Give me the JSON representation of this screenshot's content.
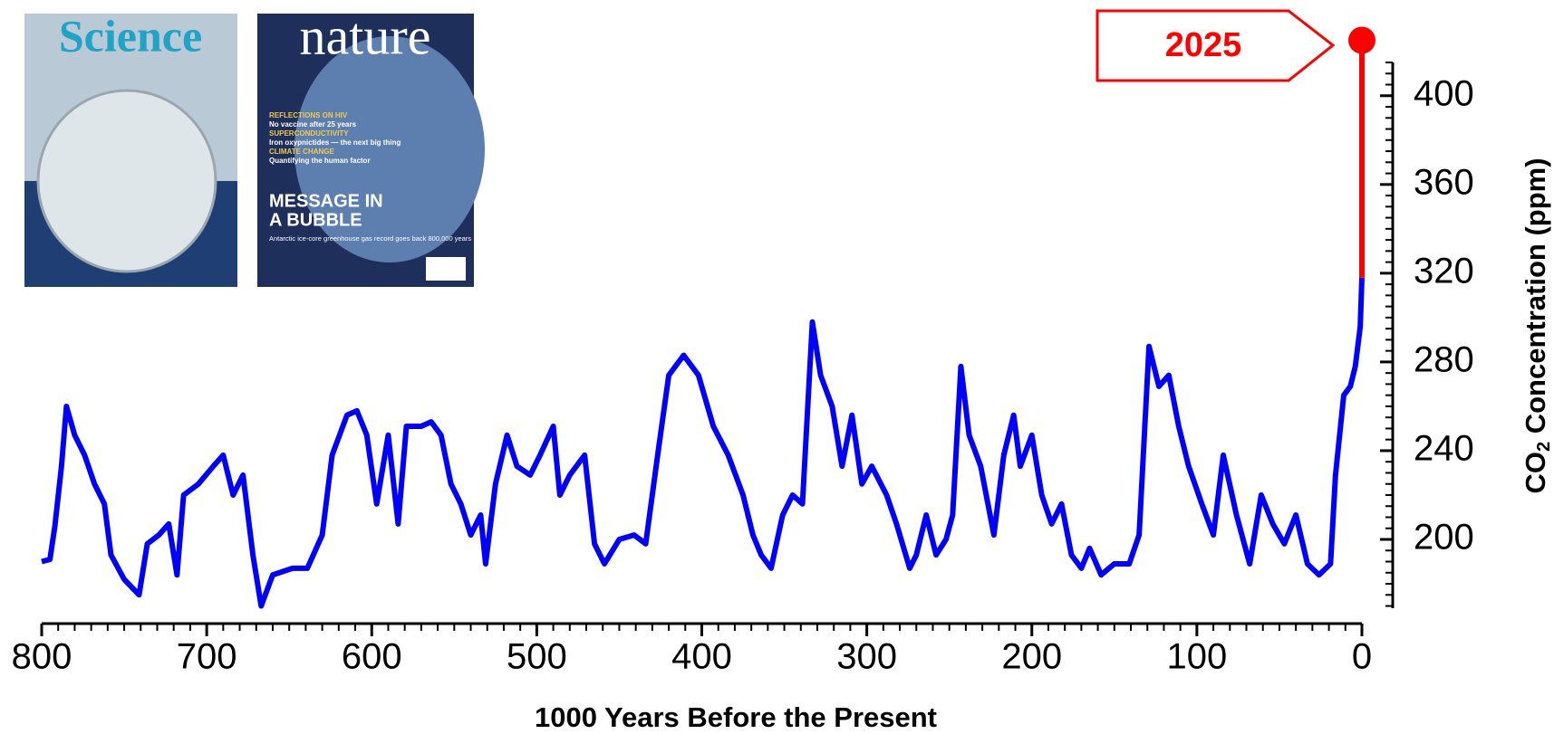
{
  "chart_data": {
    "type": "line",
    "xlabel": "1000 Years Before the Present",
    "ylabel": [
      "CO",
      "2",
      " Concentration (ppm)"
    ],
    "xlim": [
      800,
      0
    ],
    "ylim": [
      169,
      415
    ],
    "xticks": [
      800,
      700,
      600,
      500,
      400,
      300,
      200,
      100,
      0
    ],
    "yticks": [
      200,
      240,
      280,
      320,
      360,
      400
    ],
    "xminorticks": [
      790,
      780,
      770,
      760,
      750,
      740,
      730,
      720,
      710,
      690,
      680,
      670,
      660,
      650,
      640,
      630,
      620,
      610,
      590,
      580,
      570,
      560,
      550,
      540,
      530,
      520,
      510,
      490,
      480,
      470,
      460,
      450,
      440,
      430,
      420,
      410,
      390,
      380,
      370,
      360,
      350,
      340,
      330,
      320,
      310,
      290,
      280,
      270,
      260,
      250,
      240,
      230,
      220,
      210,
      190,
      180,
      170,
      160,
      150,
      140,
      130,
      120,
      110,
      90,
      80,
      70,
      60,
      50,
      40,
      30,
      20,
      10
    ],
    "yminorticks": [
      170,
      175,
      180,
      185,
      190,
      195,
      205,
      210,
      215,
      220,
      225,
      230,
      235,
      245,
      250,
      255,
      260,
      265,
      270,
      275,
      285,
      290,
      295,
      300,
      305,
      310,
      315,
      325,
      330,
      335,
      340,
      345,
      350,
      355,
      365,
      370,
      375,
      380,
      385,
      390,
      395,
      405,
      410,
      415
    ],
    "annotation": "2025",
    "images": [
      {
        "title": "Science"
      },
      {
        "title": "nature",
        "lines": [
          "REFLECTIONS ON HIV",
          "No vaccine after 25 years",
          "SUPERCONDUCTIVITY",
          "Iron oxypnictides — the next big thing",
          "CLIMATE CHANGE",
          "Quantifying the human factor"
        ],
        "headline": [
          "MESSAGE IN",
          "A BUBBLE"
        ],
        "subhead": "Antarctic ice-core greenhouse gas record goes back 800,000 years"
      }
    ],
    "series": [
      {
        "color": "#0000ff",
        "x": [
          800,
          795,
          792,
          788,
          785,
          780,
          774,
          768,
          762,
          758,
          750,
          741,
          736,
          729,
          723,
          718,
          714,
          705,
          696,
          690,
          684,
          678,
          672,
          667,
          660,
          648,
          639,
          630,
          624,
          615,
          609,
          603,
          597,
          590,
          584,
          579,
          570,
          564,
          558,
          552,
          546,
          540,
          534,
          531,
          525,
          518,
          512,
          504,
          498,
          490,
          486,
          480,
          471,
          465,
          459,
          450,
          441,
          434,
          426,
          420,
          411,
          402,
          393,
          384,
          375,
          369,
          364,
          358,
          351,
          345,
          339,
          333,
          328,
          321,
          315,
          309,
          303,
          297,
          288,
          282,
          274,
          270,
          264,
          258,
          252,
          248,
          243,
          238,
          231,
          223,
          217,
          211,
          207,
          200,
          194,
          188,
          182,
          176,
          170,
          165,
          158,
          150,
          141,
          135,
          129,
          123,
          117,
          111,
          105,
          97,
          90,
          84,
          76,
          68,
          61,
          54,
          47,
          40,
          33,
          26,
          19,
          16,
          11,
          7,
          4,
          1,
          0
        ],
        "values": [
          190,
          191,
          206,
          233,
          260,
          247,
          238,
          225,
          216,
          193,
          182,
          175,
          198,
          202,
          207,
          184,
          220,
          225,
          233,
          238,
          220,
          229,
          193,
          170,
          184,
          187,
          187,
          202,
          238,
          256,
          258,
          247,
          216,
          247,
          207,
          251,
          251,
          253,
          247,
          225,
          216,
          202,
          211,
          189,
          225,
          247,
          233,
          229,
          238,
          251,
          220,
          229,
          238,
          198,
          189,
          200,
          202,
          198,
          242,
          274,
          283,
          274,
          251,
          238,
          220,
          202,
          193,
          187,
          211,
          220,
          216,
          298,
          274,
          260,
          233,
          256,
          225,
          233,
          220,
          207,
          187,
          193,
          211,
          193,
          200,
          211,
          278,
          247,
          233,
          202,
          238,
          256,
          233,
          247,
          220,
          207,
          216,
          193,
          187,
          196,
          184,
          189,
          189,
          202,
          287,
          269,
          274,
          251,
          233,
          216,
          202,
          238,
          211,
          189,
          220,
          207,
          198,
          211,
          189,
          184,
          189,
          229,
          265,
          269,
          278,
          296,
          318
        ]
      },
      {
        "color": "#ff0000",
        "x": [
          0,
          0
        ],
        "values": [
          318,
          425
        ]
      }
    ]
  }
}
